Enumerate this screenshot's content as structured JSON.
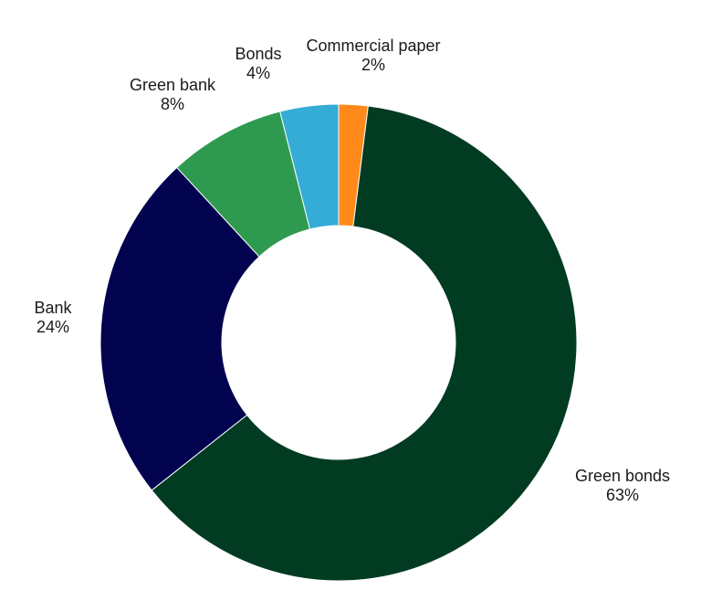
{
  "chart_data": {
    "type": "pie",
    "donut": true,
    "categories": [
      "Green bonds",
      "Bank",
      "Green bank",
      "Bonds",
      "Commercial paper"
    ],
    "values": [
      63,
      24,
      8,
      4,
      2
    ],
    "value_labels": [
      "63%",
      "24%",
      "8%",
      "4%",
      "2%"
    ],
    "colors": [
      "#003b22",
      "#02034f",
      "#2e9a4f",
      "#34acd6",
      "#ff8a1a"
    ],
    "start": "top, clockwise, Commercial paper first",
    "legend": "none",
    "labels_outside": true
  }
}
